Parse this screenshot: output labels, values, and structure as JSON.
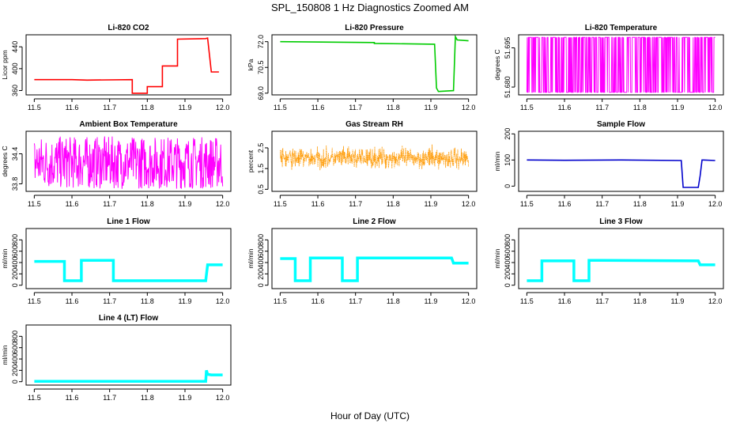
{
  "figure": {
    "title": "SPL_150808  1 Hz Diagnostics Zoomed AM",
    "xlabel": "Hour of Day (UTC)"
  },
  "chart_data": [
    {
      "type": "line",
      "title": "Li-820 CO2",
      "ylabel": "Licor ppm",
      "color": "#ff0000",
      "xlim": [
        11.5,
        12.0
      ],
      "ylim": [
        352,
        462
      ],
      "xticks": [
        11.5,
        11.6,
        11.7,
        11.8,
        11.9,
        12.0
      ],
      "yticks": [
        360,
        400,
        440
      ],
      "series": [
        {
          "x": [
            11.5,
            11.6,
            11.64,
            11.76,
            11.76,
            11.8,
            11.8,
            11.84,
            11.84,
            11.88,
            11.88,
            11.955,
            11.96,
            11.97,
            11.99
          ],
          "y": [
            380,
            380,
            379,
            380,
            355,
            355,
            367,
            367,
            405,
            405,
            454,
            455,
            456,
            394,
            394
          ]
        }
      ]
    },
    {
      "type": "line",
      "title": "Li-820 Pressure",
      "ylabel": "kPa",
      "color": "#00cc00",
      "xlim": [
        11.5,
        12.0
      ],
      "ylim": [
        68.9,
        72.4
      ],
      "xticks": [
        11.5,
        11.6,
        11.7,
        11.8,
        11.9,
        12.0
      ],
      "yticks": [
        69.0,
        70.5,
        72.0
      ],
      "series": [
        {
          "x": [
            11.5,
            11.75,
            11.75,
            11.91,
            11.915,
            11.92,
            11.96,
            11.965,
            11.97,
            12.0
          ],
          "y": [
            72.0,
            71.95,
            71.9,
            71.85,
            69.3,
            69.1,
            69.15,
            72.3,
            72.1,
            72.05
          ]
        }
      ]
    },
    {
      "type": "line",
      "title": "Li-820 Temperature",
      "ylabel": "degrees C",
      "color": "#ff00ff",
      "xlim": [
        11.5,
        12.0
      ],
      "ylim": [
        51.677,
        51.7
      ],
      "xticks": [
        11.5,
        11.6,
        11.7,
        11.8,
        11.9,
        12.0
      ],
      "yticks": [
        51.68,
        51.695
      ],
      "series": [
        {
          "x": [
            11.5,
            12.0
          ],
          "y_low": 51.678,
          "y_high": 51.699
        }
      ]
    },
    {
      "type": "line",
      "title": "Ambient Box Temperature",
      "ylabel": "degrees C",
      "color": "#ff00ff",
      "xlim": [
        11.5,
        12.0
      ],
      "ylim": [
        33.65,
        34.85
      ],
      "xticks": [
        11.5,
        11.6,
        11.7,
        11.8,
        11.9,
        12.0
      ],
      "yticks": [
        33.8,
        34.4
      ],
      "series": [
        {
          "x": [
            11.5,
            12.0
          ],
          "y_low": 33.7,
          "y_high": 34.75
        }
      ]
    },
    {
      "type": "scatter",
      "title": "Gas Stream RH",
      "ylabel": "percent",
      "color": "#ff9900",
      "xlim": [
        11.5,
        12.0
      ],
      "ylim": [
        0.4,
        3.3
      ],
      "xticks": [
        11.5,
        11.6,
        11.7,
        11.8,
        11.9,
        12.0
      ],
      "yticks": [
        0.5,
        1.5,
        2.5
      ],
      "series": [
        {
          "x": [
            11.5,
            12.0
          ],
          "y_center": 2.0,
          "y_spread": 0.45
        }
      ]
    },
    {
      "type": "line",
      "title": "Sample Flow",
      "ylabel": "ml/min",
      "color": "#0000cc",
      "xlim": [
        11.5,
        12.0
      ],
      "ylim": [
        -20,
        210
      ],
      "xticks": [
        11.5,
        11.6,
        11.7,
        11.8,
        11.9,
        12.0
      ],
      "yticks": [
        0,
        100,
        200
      ],
      "series": [
        {
          "x": [
            11.5,
            11.6,
            11.75,
            11.91,
            11.915,
            11.955,
            11.96,
            11.965,
            12.0
          ],
          "y": [
            100,
            99,
            100,
            98,
            -5,
            -5,
            40,
            100,
            98
          ]
        }
      ]
    },
    {
      "type": "line",
      "title": "Line 1 Flow",
      "ylabel": "ml/min",
      "color": "#00ffff",
      "xlim": [
        11.5,
        12.0
      ],
      "ylim": [
        -60,
        1000
      ],
      "xticks": [
        11.5,
        11.6,
        11.7,
        11.8,
        11.9,
        12.0
      ],
      "yticks": [
        0,
        200,
        400,
        600,
        800
      ],
      "series": [
        {
          "x": [
            11.5,
            11.58,
            11.58,
            11.625,
            11.625,
            11.71,
            11.71,
            11.955,
            11.96,
            12.0
          ],
          "y": [
            420,
            420,
            80,
            80,
            440,
            440,
            80,
            80,
            360,
            360
          ]
        }
      ]
    },
    {
      "type": "line",
      "title": "Line 2 Flow",
      "ylabel": "ml/min",
      "color": "#00ffff",
      "xlim": [
        11.5,
        12.0
      ],
      "ylim": [
        -60,
        1000
      ],
      "xticks": [
        11.5,
        11.6,
        11.7,
        11.8,
        11.9,
        12.0
      ],
      "yticks": [
        0,
        200,
        400,
        600,
        800
      ],
      "series": [
        {
          "x": [
            11.5,
            11.54,
            11.54,
            11.58,
            11.58,
            11.665,
            11.665,
            11.705,
            11.705,
            11.955,
            11.96,
            12.0
          ],
          "y": [
            470,
            470,
            80,
            80,
            480,
            480,
            80,
            80,
            480,
            480,
            390,
            390
          ]
        }
      ]
    },
    {
      "type": "line",
      "title": "Line 3 Flow",
      "ylabel": "ml/min",
      "color": "#00ffff",
      "xlim": [
        11.5,
        12.0
      ],
      "ylim": [
        -60,
        1000
      ],
      "xticks": [
        11.5,
        11.6,
        11.7,
        11.8,
        11.9,
        12.0
      ],
      "yticks": [
        0,
        200,
        400,
        600,
        800
      ],
      "series": [
        {
          "x": [
            11.5,
            11.54,
            11.54,
            11.625,
            11.625,
            11.665,
            11.665,
            11.955,
            11.96,
            12.0
          ],
          "y": [
            80,
            80,
            430,
            430,
            80,
            80,
            440,
            430,
            360,
            360
          ]
        }
      ]
    },
    {
      "type": "line",
      "title": "Line 4 (LT) Flow",
      "ylabel": "ml/min",
      "color": "#00ffff",
      "xlim": [
        11.5,
        12.0
      ],
      "ylim": [
        -60,
        1000
      ],
      "xticks": [
        11.5,
        11.6,
        11.7,
        11.8,
        11.9,
        12.0
      ],
      "yticks": [
        0,
        200,
        400,
        600,
        800
      ],
      "series": [
        {
          "x": [
            11.5,
            11.6,
            11.7,
            11.8,
            11.9,
            11.955,
            11.957,
            11.96,
            11.97,
            12.0
          ],
          "y": [
            5,
            5,
            5,
            5,
            5,
            5,
            200,
            130,
            120,
            120
          ]
        }
      ]
    }
  ]
}
